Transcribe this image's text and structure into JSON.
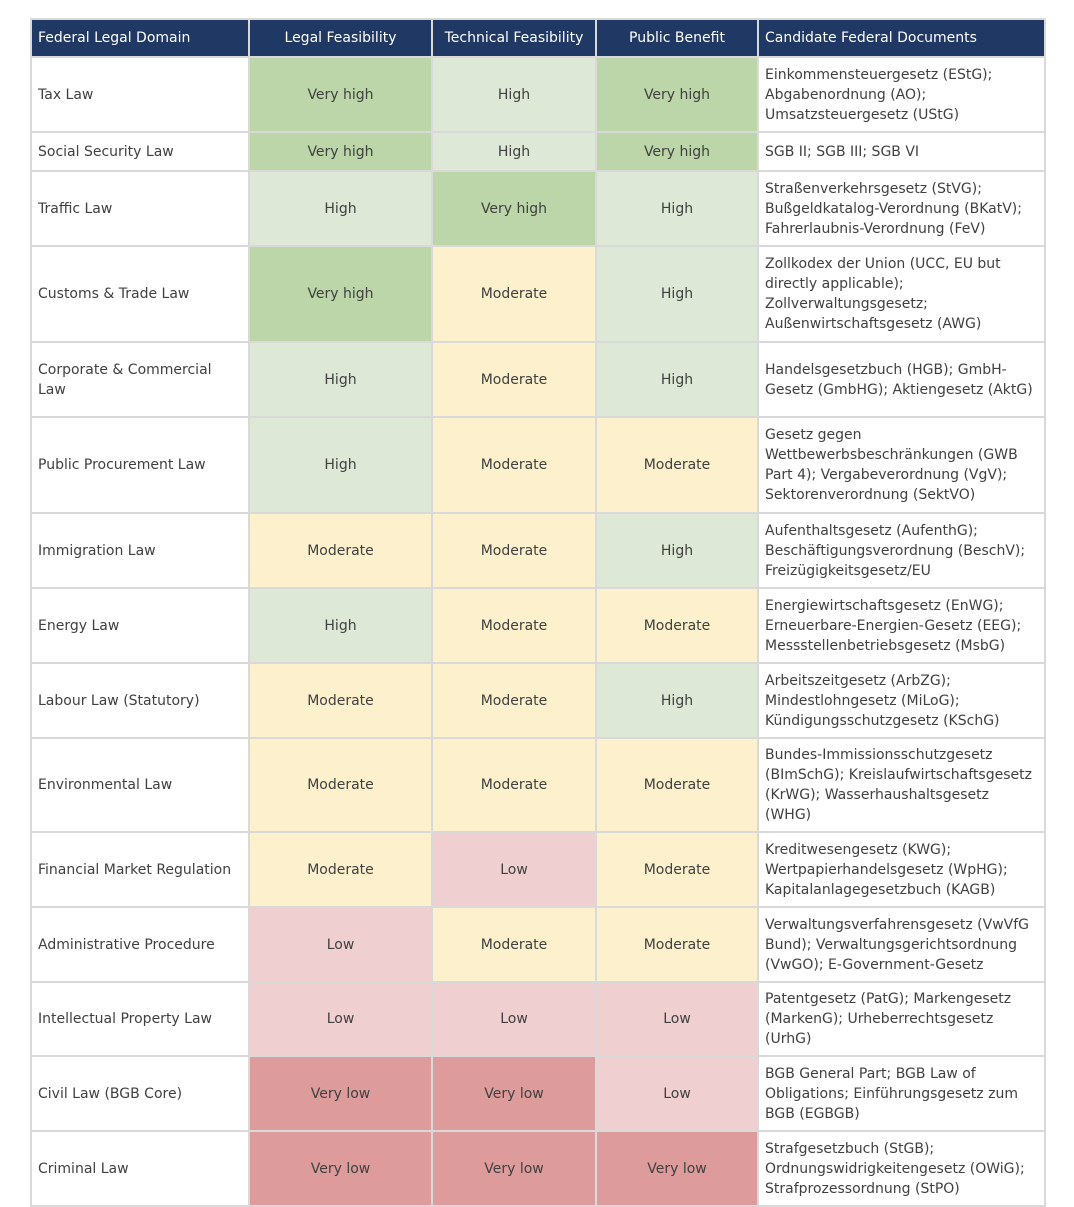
{
  "headers": [
    "Federal Legal Domain",
    "Legal Feasibility",
    "Technical Feasibility",
    "Public Benefit",
    "Candidate Federal Documents"
  ],
  "rating_colors": {
    "Very high": "#bcd5a9",
    "High": "#dde8d6",
    "Moderate": "#fdf1cd",
    "Low": "#efcfcf",
    "Very low": "#de9b9b"
  },
  "header_color": "#1f3864",
  "rows": [
    {
      "domain": "Tax Law",
      "legal": "Very high",
      "technical": "High",
      "benefit": "Very high",
      "docs": "Einkommensteuergesetz (EStG); Abgabenordnung (AO); Umsatzsteuergesetz (UStG)"
    },
    {
      "domain": "Social Security Law",
      "legal": "Very high",
      "technical": "High",
      "benefit": "Very high",
      "docs": "SGB II; SGB III; SGB VI"
    },
    {
      "domain": "Traffic Law",
      "legal": "High",
      "technical": "Very high",
      "benefit": "High",
      "docs": "Straßenverkehrsgesetz (StVG); Bußgeldkatalog-Verordnung (BKatV); Fahrerlaubnis-Verordnung (FeV)"
    },
    {
      "domain": "Customs & Trade Law",
      "legal": "Very high",
      "technical": "Moderate",
      "benefit": "High",
      "docs": "Zollkodex der Union (UCC, EU but directly applicable); Zollverwaltungsgesetz; Außenwirtschaftsgesetz (AWG)"
    },
    {
      "domain": "Corporate & Commercial Law",
      "legal": "High",
      "technical": "Moderate",
      "benefit": "High",
      "docs": "Handelsgesetzbuch (HGB); GmbH-Gesetz (GmbHG); Aktiengesetz (AktG)"
    },
    {
      "domain": "Public Procurement Law",
      "legal": "High",
      "technical": "Moderate",
      "benefit": "Moderate",
      "docs": "Gesetz gegen Wettbewerbsbeschränkungen (GWB Part 4); Vergabeverordnung (VgV); Sektorenverordnung (SektVO)"
    },
    {
      "domain": "Immigration Law",
      "legal": "Moderate",
      "technical": "Moderate",
      "benefit": "High",
      "docs": "Aufenthaltsgesetz (AufenthG); Beschäftigungsverordnung (BeschV); Freizügigkeitsgesetz/EU"
    },
    {
      "domain": "Energy Law",
      "legal": "High",
      "technical": "Moderate",
      "benefit": "Moderate",
      "docs": "Energiewirtschaftsgesetz (EnWG); Erneuerbare-Energien-Gesetz (EEG); Messstellenbetriebsgesetz (MsbG)"
    },
    {
      "domain": "Labour Law (Statutory)",
      "legal": "Moderate",
      "technical": "Moderate",
      "benefit": "High",
      "docs": "Arbeitszeitgesetz (ArbZG); Mindestlohngesetz (MiLoG); Kündigungsschutzgesetz (KSchG)"
    },
    {
      "domain": "Environmental Law",
      "legal": "Moderate",
      "technical": "Moderate",
      "benefit": "Moderate",
      "docs": "Bundes-Immissionsschutzgesetz (BImSchG); Kreislaufwirtschaftsgesetz (KrWG); Wasserhaushaltsgesetz (WHG)"
    },
    {
      "domain": "Financial Market Regulation",
      "legal": "Moderate",
      "technical": "Low",
      "benefit": "Moderate",
      "docs": "Kreditwesengesetz (KWG); Wertpapierhandelsgesetz (WpHG); Kapitalanlagegesetzbuch (KAGB)"
    },
    {
      "domain": "Administrative Procedure",
      "legal": "Low",
      "technical": "Moderate",
      "benefit": "Moderate",
      "docs": "Verwaltungsverfahrensgesetz (VwVfG Bund); Verwaltungsgerichtsordnung (VwGO); E-Government-Gesetz"
    },
    {
      "domain": "Intellectual Property Law",
      "legal": "Low",
      "technical": "Low",
      "benefit": "Low",
      "docs": "Patentgesetz (PatG); Markengesetz (MarkenG); Urheberrechtsgesetz (UrhG)"
    },
    {
      "domain": "Civil Law (BGB Core)",
      "legal": "Very low",
      "technical": "Very low",
      "benefit": "Low",
      "docs": "BGB General Part; BGB Law of Obligations; Einführungsgesetz zum BGB (EGBGB)"
    },
    {
      "domain": "Criminal Law",
      "legal": "Very low",
      "technical": "Very low",
      "benefit": "Very low",
      "docs": "Strafgesetzbuch (StGB); Ordnungswidrigkeitengesetz (OWiG); Strafprozessordnung (StPO)"
    }
  ]
}
